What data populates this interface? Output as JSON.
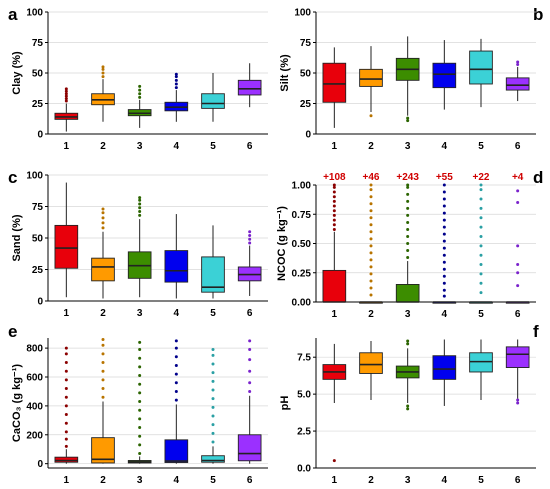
{
  "colors": [
    "#e8000b",
    "#ff9a00",
    "#3c8d00",
    "#0000ee",
    "#3bd1d6",
    "#9b30ff"
  ],
  "outlier_colors": [
    "#8b0000",
    "#b87400",
    "#2b6400",
    "#00008b",
    "#2aa0a4",
    "#7a22cc"
  ],
  "chart_data": [
    {
      "panel": "a",
      "type": "box",
      "ylabel": "Clay (%)",
      "ylim": [
        0,
        100
      ],
      "yticks": [
        0,
        25,
        50,
        75,
        100
      ],
      "yticklabels": [
        "0",
        "25",
        "50",
        "75",
        "100"
      ],
      "categories": [
        "1",
        "2",
        "3",
        "4",
        "5",
        "6"
      ],
      "boxes": [
        {
          "min": 2,
          "q1": 12,
          "median": 14,
          "q3": 17,
          "max": 25,
          "outliers": [
            27,
            29,
            31,
            33,
            35,
            37
          ]
        },
        {
          "min": 10,
          "q1": 24,
          "median": 28,
          "q3": 33,
          "max": 45,
          "outliers": [
            47,
            50,
            53,
            55
          ]
        },
        {
          "min": 5,
          "q1": 15,
          "median": 17,
          "q3": 20,
          "max": 28,
          "outliers": [
            30,
            33,
            36,
            39
          ]
        },
        {
          "min": 10,
          "q1": 19,
          "median": 22,
          "q3": 26,
          "max": 36,
          "outliers": [
            38,
            41,
            44,
            47,
            49
          ]
        },
        {
          "min": 10,
          "q1": 21,
          "median": 25,
          "q3": 33,
          "max": 50,
          "outliers": []
        },
        {
          "min": 22,
          "q1": 32,
          "median": 37,
          "q3": 44,
          "max": 58,
          "outliers": []
        }
      ]
    },
    {
      "panel": "b",
      "type": "box",
      "ylabel": "Silt (%)",
      "ylim": [
        0,
        100
      ],
      "yticks": [
        0,
        25,
        50,
        75,
        100
      ],
      "yticklabels": [
        "0",
        "25",
        "50",
        "75",
        "100"
      ],
      "categories": [
        "1",
        "2",
        "3",
        "4",
        "5",
        "6"
      ],
      "boxes": [
        {
          "min": 5,
          "q1": 26,
          "median": 41,
          "q3": 58,
          "max": 71,
          "outliers": []
        },
        {
          "min": 18,
          "q1": 39,
          "median": 45,
          "q3": 53,
          "max": 72,
          "outliers": [
            15
          ]
        },
        {
          "min": 15,
          "q1": 44,
          "median": 53,
          "q3": 62,
          "max": 80,
          "outliers": [
            11,
            13
          ]
        },
        {
          "min": 20,
          "q1": 38,
          "median": 49,
          "q3": 58,
          "max": 77,
          "outliers": []
        },
        {
          "min": 22,
          "q1": 41,
          "median": 53,
          "q3": 68,
          "max": 78,
          "outliers": []
        },
        {
          "min": 27,
          "q1": 36,
          "median": 40,
          "q3": 46,
          "max": 55,
          "outliers": [
            57,
            59
          ]
        }
      ]
    },
    {
      "panel": "c",
      "type": "box",
      "ylabel": "Sand (%)",
      "ylim": [
        0,
        100
      ],
      "yticks": [
        0,
        25,
        50,
        75,
        100
      ],
      "yticklabels": [
        "0",
        "25",
        "50",
        "75",
        "100"
      ],
      "categories": [
        "1",
        "2",
        "3",
        "4",
        "5",
        "6"
      ],
      "boxes": [
        {
          "min": 3,
          "q1": 26,
          "median": 42,
          "q3": 60,
          "max": 94,
          "outliers": []
        },
        {
          "min": 2,
          "q1": 16,
          "median": 27,
          "q3": 34,
          "max": 55,
          "outliers": [
            58,
            62,
            66,
            70,
            73
          ]
        },
        {
          "min": 3,
          "q1": 18,
          "median": 28,
          "q3": 39,
          "max": 65,
          "outliers": [
            68,
            71,
            74,
            77,
            80,
            82
          ]
        },
        {
          "min": 2,
          "q1": 15,
          "median": 24,
          "q3": 40,
          "max": 69,
          "outliers": []
        },
        {
          "min": 2,
          "q1": 7,
          "median": 11,
          "q3": 35,
          "max": 60,
          "outliers": []
        },
        {
          "min": 4,
          "q1": 16,
          "median": 21,
          "q3": 27,
          "max": 44,
          "outliers": [
            46,
            49,
            52,
            55
          ]
        }
      ]
    },
    {
      "panel": "d",
      "type": "box",
      "ylabel": "NCOC (g kg⁻¹)",
      "ylim": [
        0,
        1.0
      ],
      "yticks": [
        0,
        0.25,
        0.5,
        0.75,
        1.0
      ],
      "yticklabels": [
        "0.00",
        "0.25",
        "0.50",
        "0.75",
        "1.00"
      ],
      "categories": [
        "1",
        "2",
        "3",
        "4",
        "5",
        "6"
      ],
      "counts": [
        "+108",
        "+46",
        "+243",
        "+55",
        "+22",
        "+4"
      ],
      "boxes": [
        {
          "min": 0,
          "q1": 0.0,
          "median": 0.0,
          "q3": 0.27,
          "max": 0.6,
          "outliers": [
            0.62,
            0.66,
            0.7,
            0.74,
            0.78,
            0.82,
            0.86,
            0.9,
            0.94,
            0.98,
            1.0
          ]
        },
        {
          "min": 0,
          "q1": 0.0,
          "median": 0.0,
          "q3": 0.0,
          "max": 0.0,
          "outliers": [
            0.06,
            0.12,
            0.18,
            0.24,
            0.3,
            0.36,
            0.42,
            0.48,
            0.54,
            0.6,
            0.66,
            0.72,
            0.78,
            0.84,
            0.9,
            0.96,
            1.0
          ]
        },
        {
          "min": 0,
          "q1": 0.0,
          "median": 0.0,
          "q3": 0.15,
          "max": 0.35,
          "outliers": [
            0.38,
            0.44,
            0.5,
            0.56,
            0.62,
            0.68,
            0.74,
            0.8,
            0.86,
            0.92,
            0.98,
            1.0
          ]
        },
        {
          "min": 0,
          "q1": 0.0,
          "median": 0.0,
          "q3": 0.0,
          "max": 0.0,
          "outliers": [
            0.05,
            0.1,
            0.16,
            0.22,
            0.28,
            0.34,
            0.4,
            0.46,
            0.52,
            0.58,
            0.64,
            0.7,
            0.76,
            0.82,
            0.88,
            0.94,
            1.0
          ]
        },
        {
          "min": 0,
          "q1": 0.0,
          "median": 0.0,
          "q3": 0.0,
          "max": 0.0,
          "outliers": [
            0.08,
            0.16,
            0.24,
            0.32,
            0.4,
            0.48,
            0.56,
            0.64,
            0.72,
            0.8,
            0.88,
            0.96,
            1.0
          ]
        },
        {
          "min": 0,
          "q1": 0.0,
          "median": 0.0,
          "q3": 0.0,
          "max": 0.0,
          "outliers": [
            0.14,
            0.25,
            0.32,
            0.48,
            0.85,
            0.95
          ]
        }
      ]
    },
    {
      "panel": "e",
      "type": "box",
      "ylabel": "CaCO₃ (g kg⁻¹)",
      "ylim": [
        -30,
        870
      ],
      "yticks": [
        0,
        200,
        400,
        600,
        800
      ],
      "yticklabels": [
        "0",
        "200",
        "400",
        "600",
        "800"
      ],
      "categories": [
        "1",
        "2",
        "3",
        "4",
        "5",
        "6"
      ],
      "boxes": [
        {
          "min": 0,
          "q1": 10,
          "median": 22,
          "q3": 45,
          "max": 100,
          "outliers": [
            120,
            170,
            220,
            280,
            340,
            400,
            460,
            520,
            580,
            640,
            700,
            760,
            800
          ]
        },
        {
          "min": 0,
          "q1": 5,
          "median": 30,
          "q3": 180,
          "max": 430,
          "outliers": [
            460,
            520,
            580,
            640,
            700,
            760,
            820,
            860
          ]
        },
        {
          "min": 0,
          "q1": 5,
          "median": 12,
          "q3": 22,
          "max": 50,
          "outliers": [
            70,
            130,
            190,
            250,
            310,
            370,
            430,
            490,
            550,
            610,
            670,
            730,
            790,
            840
          ]
        },
        {
          "min": 0,
          "q1": 8,
          "median": 18,
          "q3": 165,
          "max": 410,
          "outliers": [
            440,
            500,
            560,
            620,
            680,
            740,
            800,
            850
          ]
        },
        {
          "min": 0,
          "q1": 10,
          "median": 22,
          "q3": 55,
          "max": 120,
          "outliers": [
            150,
            210,
            270,
            330,
            390,
            450,
            510,
            570,
            630,
            690,
            750,
            790
          ]
        },
        {
          "min": 0,
          "q1": 20,
          "median": 70,
          "q3": 200,
          "max": 470,
          "outliers": [
            500,
            560,
            640,
            720,
            790,
            850
          ]
        }
      ]
    },
    {
      "panel": "f",
      "type": "box",
      "ylabel": "pH",
      "ylim": [
        0,
        8.8
      ],
      "yticks": [
        0,
        2.5,
        5,
        7.5
      ],
      "yticklabels": [
        "0.0",
        "2.5",
        "5.0",
        "7.5"
      ],
      "categories": [
        "1",
        "2",
        "3",
        "4",
        "5",
        "6"
      ],
      "boxes": [
        {
          "min": 4.4,
          "q1": 6.0,
          "median": 6.5,
          "q3": 7.0,
          "max": 8.4,
          "outliers": [
            0.5
          ]
        },
        {
          "min": 4.6,
          "q1": 6.4,
          "median": 7.0,
          "q3": 7.8,
          "max": 8.6,
          "outliers": []
        },
        {
          "min": 4.4,
          "q1": 6.1,
          "median": 6.5,
          "q3": 6.9,
          "max": 8.1,
          "outliers": [
            4.0,
            4.2,
            8.4,
            8.6
          ]
        },
        {
          "min": 4.2,
          "q1": 6.0,
          "median": 6.7,
          "q3": 7.6,
          "max": 8.7,
          "outliers": []
        },
        {
          "min": 4.6,
          "q1": 6.5,
          "median": 7.2,
          "q3": 7.8,
          "max": 8.7,
          "outliers": []
        },
        {
          "min": 4.7,
          "q1": 6.8,
          "median": 7.7,
          "q3": 8.2,
          "max": 8.7,
          "outliers": [
            4.4,
            4.6
          ]
        }
      ]
    }
  ]
}
